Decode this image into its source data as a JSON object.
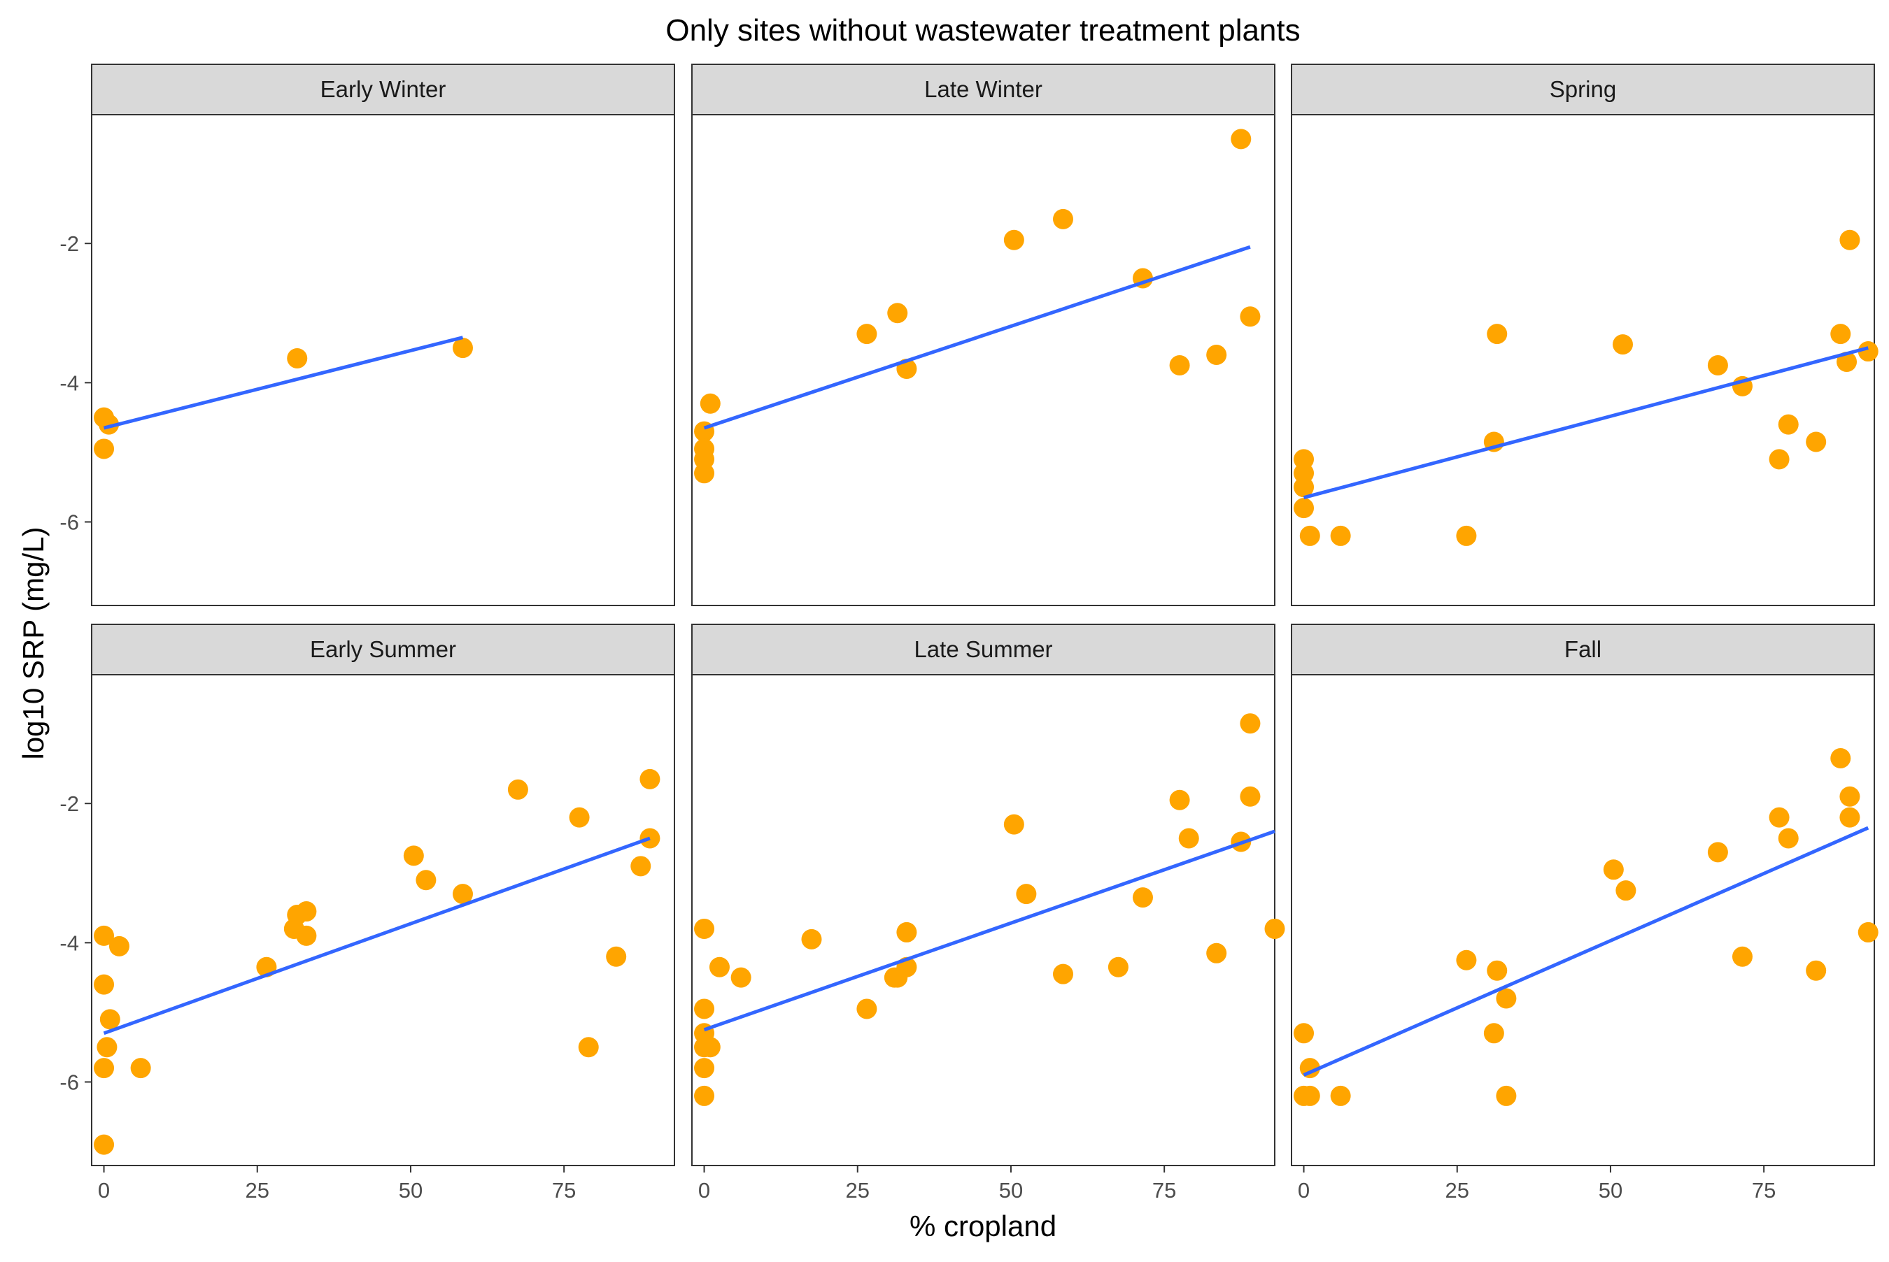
{
  "chart_data": {
    "type": "scatter",
    "title": "Only sites without wastewater treatment plants",
    "xlabel": "% cropland",
    "ylabel": "log10 SRP (mg/L)",
    "xlim": [
      -2,
      93
    ],
    "ylim": [
      -7.2,
      -0.15
    ],
    "x_ticks": [
      0,
      25,
      50,
      75
    ],
    "y_ticks": [
      -2,
      -4,
      -6
    ],
    "x_tick_labels": [
      "0",
      "25",
      "50",
      "75"
    ],
    "y_tick_labels": [
      "-2",
      "-4",
      "-6"
    ],
    "point_color": "#FFA500",
    "line_color": "#3366FF",
    "panel_border_color": "#333333",
    "strip_fill": "#D9D9D9",
    "grid": false,
    "facets": [
      {
        "label": "Early Winter",
        "points": [
          [
            0,
            -4.5
          ],
          [
            0.8,
            -4.6
          ],
          [
            0,
            -4.95
          ],
          [
            31.5,
            -3.65
          ],
          [
            58.5,
            -3.5
          ]
        ],
        "fit": [
          [
            0,
            -4.65
          ],
          [
            58.5,
            -3.35
          ]
        ]
      },
      {
        "label": "Late Winter",
        "points": [
          [
            87.5,
            -0.5
          ],
          [
            58.5,
            -1.65
          ],
          [
            50.5,
            -1.95
          ],
          [
            71.5,
            -2.5
          ],
          [
            31.5,
            -3.0
          ],
          [
            89,
            -3.05
          ],
          [
            26.5,
            -3.3
          ],
          [
            33,
            -3.8
          ],
          [
            77.5,
            -3.75
          ],
          [
            83.5,
            -3.6
          ],
          [
            1,
            -4.3
          ],
          [
            0,
            -4.7
          ],
          [
            0,
            -4.95
          ],
          [
            0,
            -5.1
          ],
          [
            0,
            -5.3
          ]
        ],
        "fit": [
          [
            0,
            -4.65
          ],
          [
            89,
            -2.05
          ]
        ]
      },
      {
        "label": "Spring",
        "points": [
          [
            89,
            -1.95
          ],
          [
            31.5,
            -3.3
          ],
          [
            52,
            -3.45
          ],
          [
            87.5,
            -3.3
          ],
          [
            92,
            -3.55
          ],
          [
            88.5,
            -3.7
          ],
          [
            67.5,
            -3.75
          ],
          [
            71.5,
            -4.05
          ],
          [
            31,
            -4.85
          ],
          [
            79,
            -4.6
          ],
          [
            83.5,
            -4.85
          ],
          [
            77.5,
            -5.1
          ],
          [
            0,
            -5.1
          ],
          [
            0,
            -5.3
          ],
          [
            0,
            -5.5
          ],
          [
            0,
            -5.8
          ],
          [
            1,
            -6.2
          ],
          [
            6,
            -6.2
          ],
          [
            26.5,
            -6.2
          ]
        ],
        "fit": [
          [
            0,
            -5.65
          ],
          [
            92,
            -3.5
          ]
        ]
      },
      {
        "label": "Early Summer",
        "points": [
          [
            89,
            -1.65
          ],
          [
            67.5,
            -1.8
          ],
          [
            77.5,
            -2.2
          ],
          [
            89,
            -2.5
          ],
          [
            50.5,
            -2.75
          ],
          [
            87.5,
            -2.9
          ],
          [
            52.5,
            -3.1
          ],
          [
            58.5,
            -3.3
          ],
          [
            33,
            -3.55
          ],
          [
            31.5,
            -3.6
          ],
          [
            31,
            -3.8
          ],
          [
            33,
            -3.9
          ],
          [
            0,
            -3.9
          ],
          [
            2.5,
            -4.05
          ],
          [
            26.5,
            -4.35
          ],
          [
            83.5,
            -4.2
          ],
          [
            0,
            -4.6
          ],
          [
            1,
            -5.1
          ],
          [
            0.5,
            -5.5
          ],
          [
            79,
            -5.5
          ],
          [
            0,
            -5.8
          ],
          [
            6,
            -5.8
          ],
          [
            0,
            -6.9
          ]
        ],
        "fit": [
          [
            0,
            -5.3
          ],
          [
            89,
            -2.5
          ]
        ]
      },
      {
        "label": "Late Summer",
        "points": [
          [
            89,
            -0.85
          ],
          [
            77.5,
            -1.95
          ],
          [
            89,
            -1.9
          ],
          [
            50.5,
            -2.3
          ],
          [
            79,
            -2.5
          ],
          [
            87.5,
            -2.55
          ],
          [
            52.5,
            -3.3
          ],
          [
            71.5,
            -3.35
          ],
          [
            0,
            -3.8
          ],
          [
            93,
            -3.8
          ],
          [
            33,
            -3.85
          ],
          [
            17.5,
            -3.95
          ],
          [
            83.5,
            -4.15
          ],
          [
            2.5,
            -4.35
          ],
          [
            33,
            -4.35
          ],
          [
            67.5,
            -4.35
          ],
          [
            58.5,
            -4.45
          ],
          [
            6,
            -4.5
          ],
          [
            31,
            -4.5
          ],
          [
            31.5,
            -4.5
          ],
          [
            0,
            -4.95
          ],
          [
            26.5,
            -4.95
          ],
          [
            0,
            -5.3
          ],
          [
            0,
            -5.5
          ],
          [
            1,
            -5.5
          ],
          [
            0,
            -5.8
          ],
          [
            0,
            -6.2
          ]
        ],
        "fit": [
          [
            0,
            -5.25
          ],
          [
            93,
            -2.4
          ]
        ]
      },
      {
        "label": "Fall",
        "points": [
          [
            87.5,
            -1.35
          ],
          [
            89,
            -1.9
          ],
          [
            89,
            -2.2
          ],
          [
            77.5,
            -2.2
          ],
          [
            79,
            -2.5
          ],
          [
            67.5,
            -2.7
          ],
          [
            50.5,
            -2.95
          ],
          [
            52.5,
            -3.25
          ],
          [
            92,
            -3.85
          ],
          [
            71.5,
            -4.2
          ],
          [
            26.5,
            -4.25
          ],
          [
            31.5,
            -4.4
          ],
          [
            83.5,
            -4.4
          ],
          [
            33,
            -4.8
          ],
          [
            0,
            -5.3
          ],
          [
            31,
            -5.3
          ],
          [
            1,
            -5.8
          ],
          [
            0,
            -6.2
          ],
          [
            1,
            -6.2
          ],
          [
            6,
            -6.2
          ],
          [
            33,
            -6.2
          ]
        ],
        "fit": [
          [
            0,
            -5.9
          ],
          [
            92,
            -2.35
          ]
        ]
      }
    ]
  }
}
